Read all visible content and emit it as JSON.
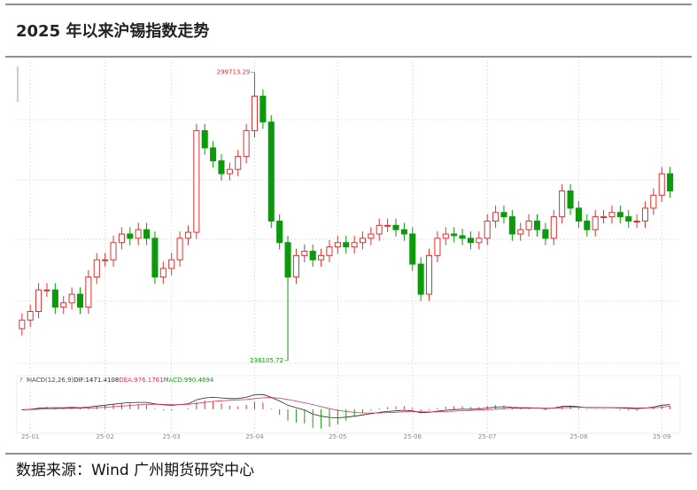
{
  "title": "2025 年以来沪锡指数走势",
  "source": "数据来源：Wind  广州期货研究中心",
  "chart_data": [
    {
      "type": "candlestick",
      "categories": [
        null,
        "25-01",
        null,
        null,
        null,
        null,
        null,
        null,
        null,
        null,
        "25-02",
        null,
        null,
        null,
        null,
        null,
        null,
        null,
        "25-03",
        null,
        null,
        null,
        null,
        null,
        null,
        null,
        null,
        null,
        "25-04",
        null,
        null,
        null,
        null,
        null,
        null,
        null,
        null,
        null,
        "25-05",
        null,
        null,
        null,
        null,
        null,
        null,
        null,
        null,
        "25-06",
        null,
        null,
        null,
        null,
        null,
        null,
        null,
        null,
        "25-07",
        null,
        null,
        null,
        null,
        null,
        null,
        null,
        null,
        null,
        null,
        "25-08",
        null,
        null,
        null,
        null,
        null,
        null,
        null,
        null,
        null,
        "25-09",
        null
      ],
      "open": [
        243136,
        245036,
        246936,
        251686,
        251686,
        247886,
        248836,
        250736,
        247886,
        254536,
        258336,
        258336,
        262136,
        264036,
        263086,
        264986,
        263086,
        254536,
        256436,
        258336,
        263086,
        264416,
        286836,
        283036,
        280186,
        277336,
        278286,
        281136,
        286836,
        294436,
        288736,
        266886,
        262136,
        254536,
        259286,
        260236,
        258336,
        259286,
        261186,
        262136,
        261186,
        262136,
        263086,
        264036,
        265936,
        265936,
        264986,
        264036,
        257386,
        250736,
        259286,
        263086,
        264036,
        263656,
        263086,
        262136,
        263086,
        266886,
        268786,
        267836,
        264036,
        264986,
        266886,
        264986,
        263086,
        267836,
        273536,
        269736,
        266886,
        264986,
        267836,
        267836,
        268786,
        267836,
        266886,
        266886,
        269736,
        272586,
        277336
      ],
      "high": [
        246536,
        248436,
        253186,
        253186,
        253186,
        250336,
        252236,
        252236,
        256036,
        259836,
        259836,
        263636,
        265536,
        265536,
        266486,
        266486,
        264586,
        257936,
        259836,
        264586,
        265916,
        288336,
        288336,
        284536,
        281686,
        279786,
        282636,
        288336,
        299713.29,
        295936,
        290236,
        268386,
        263636,
        260786,
        261736,
        261736,
        260786,
        262686,
        263636,
        263636,
        263636,
        264586,
        265536,
        267436,
        267436,
        267436,
        266486,
        265536,
        258886,
        260786,
        264586,
        265536,
        265536,
        265156,
        264586,
        264586,
        268386,
        270286,
        270286,
        269336,
        266486,
        268386,
        268386,
        266486,
        269336,
        275036,
        275036,
        271236,
        268386,
        269336,
        269336,
        270286,
        270286,
        269336,
        268386,
        271236,
        274086,
        278836,
        278836
      ],
      "low": [
        241636,
        243536,
        245436,
        250186,
        246386,
        246386,
        247336,
        246386,
        246386,
        253036,
        256836,
        256836,
        260636,
        261586,
        261586,
        261586,
        253036,
        253036,
        254936,
        256836,
        261586,
        262916,
        281536,
        278686,
        275836,
        275836,
        276786,
        279636,
        285336,
        287236,
        265386,
        260636,
        236105.72,
        253036,
        257786,
        256836,
        256836,
        257786,
        259686,
        259686,
        259686,
        260636,
        261586,
        262536,
        264436,
        263486,
        262536,
        255886,
        249236,
        249236,
        257786,
        261586,
        262156,
        261586,
        260636,
        260636,
        261586,
        265386,
        266336,
        262536,
        262536,
        263486,
        263486,
        261586,
        261586,
        266336,
        268236,
        265386,
        263486,
        263486,
        266336,
        266336,
        266336,
        265386,
        265386,
        265386,
        268236,
        271086,
        272036
      ],
      "close": [
        245036,
        246936,
        251686,
        251686,
        247886,
        248836,
        250736,
        247886,
        254536,
        258336,
        258336,
        262136,
        264036,
        263086,
        264986,
        263086,
        254536,
        256436,
        258336,
        263086,
        264416,
        286836,
        283036,
        280186,
        277336,
        278286,
        281136,
        286836,
        294436,
        288736,
        266886,
        262136,
        254536,
        259286,
        260236,
        258336,
        259286,
        261186,
        262136,
        261186,
        262136,
        263086,
        264036,
        265936,
        265936,
        264986,
        264036,
        257386,
        250736,
        259286,
        263086,
        264036,
        263656,
        263086,
        262136,
        263086,
        266886,
        268786,
        267836,
        264036,
        264986,
        266886,
        264986,
        263086,
        267836,
        273536,
        269736,
        266886,
        264986,
        267836,
        267836,
        268786,
        267836,
        266886,
        266886,
        269736,
        272586,
        277336,
        273536
      ],
      "up_color": "#e03030",
      "down_color": "#0a9a0a",
      "ylim": [
        235500,
        301000
      ]
    },
    {
      "type": "macd",
      "indicator": "MACD(12,26,9)",
      "ylim": [
        -6500,
        7000
      ],
      "series": [
        {
          "name": "DIF:",
          "color": "#222222",
          "values": [
            -200,
            0,
            300,
            500,
            500,
            500,
            600,
            500,
            700,
            1000,
            1300,
            1600,
            1900,
            2100,
            2200,
            2200,
            1700,
            1400,
            1300,
            1500,
            1700,
            3000,
            3600,
            3800,
            3600,
            3400,
            3400,
            3800,
            4600,
            4700,
            3800,
            2600,
            1300,
            500,
            -200,
            -1500,
            -2200,
            -2600,
            -2700,
            -2500,
            -2200,
            -1800,
            -1400,
            -1000,
            -700,
            -500,
            -300,
            -500,
            -1100,
            -1000,
            -600,
            -300,
            -100,
            0,
            0,
            100,
            400,
            700,
            800,
            600,
            500,
            500,
            400,
            200,
            400,
            900,
            1000,
            800,
            500,
            500,
            500,
            500,
            400,
            300,
            200,
            400,
            700,
            1300,
            1471.4108
          ]
        },
        {
          "name": "DEA:",
          "color": "#e0305a",
          "values": [
            -100,
            -80,
            0,
            100,
            200,
            250,
            300,
            350,
            400,
            500,
            650,
            800,
            1000,
            1200,
            1400,
            1550,
            1600,
            1550,
            1500,
            1500,
            1550,
            1850,
            2200,
            2500,
            2700,
            2850,
            2950,
            3100,
            3400,
            3650,
            3700,
            3500,
            3100,
            2600,
            2050,
            1500,
            850,
            200,
            -300,
            -700,
            -1000,
            -1150,
            -1200,
            -1150,
            -1050,
            -950,
            -800,
            -750,
            -800,
            -850,
            -800,
            -700,
            -580,
            -460,
            -370,
            -270,
            -130,
            40,
            200,
            280,
            330,
            370,
            380,
            350,
            360,
            470,
            580,
            620,
            600,
            580,
            570,
            560,
            530,
            490,
            430,
            420,
            480,
            650,
            976.1761
          ]
        },
        {
          "name": "MACD:",
          "color": "#1a9a1a",
          "up_color": "#e03030",
          "down_color": "#1a9a1a",
          "values": [
            -200,
            160,
            600,
            800,
            600,
            500,
            600,
            300,
            600,
            1000,
            1300,
            1600,
            1800,
            1800,
            1600,
            1300,
            200,
            -300,
            -400,
            0,
            300,
            2300,
            2800,
            2600,
            1800,
            1100,
            900,
            1400,
            2400,
            2100,
            200,
            -1800,
            -3600,
            -4200,
            -4500,
            -6000,
            -6100,
            -5600,
            -4800,
            -3600,
            -2400,
            -1300,
            -400,
            300,
            700,
            900,
            1000,
            500,
            -600,
            -300,
            400,
            800,
            960,
            920,
            740,
            740,
            1060,
            1320,
            1200,
            640,
            340,
            260,
            40,
            -300,
            80,
            860,
            840,
            360,
            -200,
            -160,
            -140,
            -120,
            -260,
            -380,
            -460,
            -40,
            440,
            1300,
            990.4694
          ]
        }
      ]
    }
  ]
}
